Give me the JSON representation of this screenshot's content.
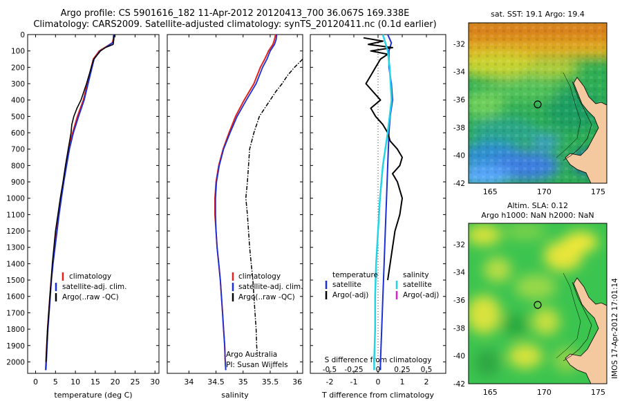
{
  "title_line1": "Argo profile: CS 5901616_182 11-Apr-2012 20120413_700 36.067S 169.338E",
  "title_line2": "Climatology: CARS2009. Satellite-adjusted climatology: synTS_20120411.nc (0.1d earlier)",
  "colors": {
    "climatology": "#e0201a",
    "satellite_adj": "#1a2fd8",
    "argo": "#000000",
    "s_satellite": "#22d3e6",
    "s_argo": "#e020d0",
    "land": "#f5c9a0"
  },
  "chart_data": [
    {
      "type": "line",
      "id": "temperature",
      "xlabel": "temperature (deg C)",
      "ylabel": "",
      "xlim": [
        -2,
        31
      ],
      "ylim": [
        2070,
        0
      ],
      "xticks": [
        "0",
        "5",
        "10",
        "15",
        "20",
        "25",
        "30"
      ],
      "yticks": [
        "0",
        "100",
        "200",
        "300",
        "400",
        "500",
        "600",
        "700",
        "800",
        "900",
        "1000",
        "1100",
        "1200",
        "1300",
        "1400",
        "1500",
        "1600",
        "1700",
        "1800",
        "1900",
        "2000"
      ],
      "legend": [
        "climatology",
        "satellite-adj. clim.",
        "Argo(..raw -QC)"
      ],
      "series": [
        {
          "name": "climatology",
          "depth": [
            0,
            30,
            50,
            70,
            100,
            150,
            200,
            300,
            400,
            500,
            600,
            700,
            800,
            900,
            1000,
            1100,
            1200,
            1300,
            1400,
            1500,
            1600,
            1700,
            1800,
            1900,
            2000,
            2050
          ],
          "values": [
            19.6,
            19.5,
            19.3,
            18.0,
            16.0,
            14.5,
            14.0,
            13.0,
            12.0,
            10.5,
            9.3,
            8.3,
            7.7,
            7.0,
            6.4,
            5.8,
            5.3,
            4.8,
            4.3,
            3.9,
            3.6,
            3.3,
            3.0,
            2.8,
            2.6,
            2.5
          ]
        },
        {
          "name": "satellite-adj. clim.",
          "depth": [
            0,
            30,
            50,
            70,
            100,
            150,
            200,
            300,
            400,
            500,
            600,
            700,
            800,
            900,
            1000,
            1100,
            1200,
            1300,
            1400,
            1500,
            1600,
            1700,
            1800,
            1900,
            2000,
            2050
          ],
          "values": [
            19.7,
            19.6,
            19.4,
            18.1,
            16.2,
            14.7,
            14.2,
            13.2,
            12.2,
            10.8,
            9.5,
            8.5,
            7.8,
            7.1,
            6.5,
            5.9,
            5.4,
            4.9,
            4.4,
            4.0,
            3.7,
            3.4,
            3.1,
            2.9,
            2.7,
            2.6
          ]
        },
        {
          "name": "Argo(..raw -QC)",
          "depth": [
            0,
            20,
            40,
            60,
            80,
            100,
            150,
            200,
            300,
            400,
            450,
            500,
            550,
            600,
            700,
            800,
            900,
            1000,
            1100,
            1200,
            1300,
            1400,
            1500,
            1600,
            1700,
            1800,
            1900,
            2000
          ],
          "values": [
            19.8,
            19.7,
            19.6,
            19.5,
            17.5,
            16.3,
            14.6,
            14.0,
            12.8,
            11.4,
            10.4,
            9.6,
            9.1,
            8.9,
            8.2,
            7.5,
            6.9,
            6.2,
            5.6,
            5.0,
            4.6,
            4.2,
            3.9,
            3.6,
            3.3,
            3.0,
            2.8,
            2.6
          ]
        }
      ]
    },
    {
      "type": "line",
      "id": "salinity",
      "xlabel": "salinity",
      "xlim": [
        33.6,
        36.1
      ],
      "ylim": [
        2070,
        0
      ],
      "xticks": [
        "34",
        "34.5",
        "35",
        "35.5",
        "36"
      ],
      "legend": [
        "climatology",
        "satellite-adj. clim.",
        "Argo(..raw -QC)"
      ],
      "annotations": [
        "Argo Australia",
        "PI: Susan Wijffels"
      ],
      "series": [
        {
          "name": "climatology",
          "depth": [
            0,
            30,
            60,
            100,
            150,
            200,
            300,
            400,
            500,
            600,
            700,
            800,
            900,
            1000,
            1100,
            1200,
            1300,
            1400,
            1500,
            1600,
            1700,
            1800,
            1900,
            2000,
            2050
          ],
          "values": [
            35.6,
            35.58,
            35.55,
            35.47,
            35.4,
            35.32,
            35.2,
            35.02,
            34.86,
            34.74,
            34.63,
            34.55,
            34.5,
            34.48,
            34.48,
            34.5,
            34.52,
            34.55,
            34.58,
            34.6,
            34.62,
            34.64,
            34.66,
            34.67,
            34.68
          ]
        },
        {
          "name": "satellite-adj. clim.",
          "depth": [
            0,
            30,
            60,
            100,
            150,
            200,
            300,
            400,
            500,
            600,
            700,
            800,
            900,
            1000,
            1100,
            1200,
            1300,
            1400,
            1500,
            1600,
            1700,
            1800,
            1900,
            2000,
            2050
          ],
          "values": [
            35.62,
            35.61,
            35.58,
            35.5,
            35.44,
            35.36,
            35.24,
            35.06,
            34.89,
            34.76,
            34.64,
            34.56,
            34.51,
            34.49,
            34.49,
            34.5,
            34.52,
            34.55,
            34.58,
            34.6,
            34.62,
            34.64,
            34.66,
            34.67,
            34.68
          ]
        },
        {
          "name": "Argo(..raw -QC)",
          "depth": [
            150,
            200,
            250,
            300,
            350,
            400,
            450,
            500,
            600,
            700,
            800,
            900,
            1000,
            1100,
            1200,
            1300,
            1400,
            1500,
            1600,
            1700,
            1800,
            1900,
            1950
          ],
          "values": [
            36.1,
            35.95,
            35.82,
            35.72,
            35.6,
            35.5,
            35.4,
            35.3,
            35.2,
            35.12,
            35.1,
            35.08,
            35.05,
            35.08,
            35.1,
            35.12,
            35.15,
            35.18,
            35.2,
            35.22,
            35.24,
            35.25,
            35.26
          ]
        }
      ]
    },
    {
      "type": "line",
      "id": "difference",
      "xlabel": "T difference from climatology",
      "xlabel_top": "S difference from climatology",
      "xlim": [
        -2.8,
        2.8
      ],
      "ylim": [
        2070,
        0
      ],
      "xticks": [
        "-2",
        "-1",
        "0",
        "1",
        "2"
      ],
      "xticks_s": [
        "-0.5",
        "-0.25",
        "0",
        "0.25",
        "0.5"
      ],
      "legend_temperature": {
        "title": "temperature",
        "items": [
          "satellite",
          "Argo(-adj)"
        ]
      },
      "legend_salinity": {
        "title": "salinity",
        "items": [
          "satellite",
          "Argo(-adj)"
        ]
      },
      "series": [
        {
          "name": "T satellite",
          "depth": [
            0,
            50,
            100,
            200,
            300,
            400,
            500,
            600,
            800,
            1000,
            1200,
            1400,
            1600,
            1800,
            2000,
            2050
          ],
          "values": [
            0.4,
            0.55,
            0.45,
            0.45,
            0.55,
            0.6,
            0.5,
            0.45,
            0.4,
            0.35,
            0.3,
            0.25,
            0.2,
            0.15,
            0.1,
            0.1
          ]
        },
        {
          "name": "T Argo(-adj)",
          "depth": [
            20,
            40,
            60,
            80,
            100,
            120,
            150,
            200,
            250,
            300,
            350,
            400,
            450,
            500,
            550,
            600,
            650,
            700,
            750,
            800,
            850,
            900,
            1000,
            1100,
            1200,
            1300,
            1400,
            1500
          ],
          "values": [
            -0.6,
            0.2,
            -0.4,
            0.6,
            -0.3,
            0.4,
            0.1,
            -0.1,
            -0.3,
            -0.5,
            -0.2,
            0.1,
            -0.3,
            -0.1,
            0.2,
            0.4,
            0.5,
            0.8,
            1.0,
            0.9,
            0.6,
            0.8,
            1.0,
            0.9,
            0.7,
            0.6,
            0.5,
            0.4
          ]
        },
        {
          "name": "S satellite",
          "depth": [
            0,
            100,
            200,
            400,
            600,
            800,
            1000,
            1200,
            1400,
            1600,
            1800,
            2000,
            2050
          ],
          "values": [
            0.05,
            0.1,
            0.12,
            0.14,
            0.1,
            0.05,
            0.02,
            0.0,
            -0.02,
            -0.03,
            -0.03,
            -0.04,
            -0.04
          ]
        }
      ]
    },
    {
      "type": "heatmap",
      "id": "sst-map",
      "title": "sat. SST: 19.1  Argo: 19.4",
      "xticks": [
        "165",
        "170",
        "175"
      ],
      "yticks": [
        "-32",
        "-34",
        "-36",
        "-38",
        "-40",
        "-42"
      ],
      "marker": {
        "lon": 169.338,
        "lat": -36.067
      }
    },
    {
      "type": "heatmap",
      "id": "sla-map",
      "title_line1": "Altim. SLA: 0.12",
      "title_line2": "Argo h1000: NaN  h2000: NaN",
      "xticks": [
        "165",
        "170",
        "175"
      ],
      "yticks": [
        "-32",
        "-34",
        "-36",
        "-38",
        "-40",
        "-42"
      ],
      "marker": {
        "lon": 169.338,
        "lat": -36.067
      }
    }
  ],
  "watermark": "IMOS 17-Apr-2012 17:01:14"
}
